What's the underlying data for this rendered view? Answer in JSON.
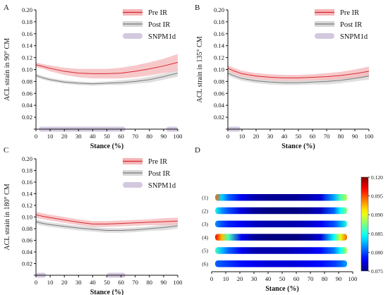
{
  "panels": [
    {
      "id": "A",
      "ylabel": "ACL strain in 90° CM",
      "xlabel": "Stance (%)",
      "show_legend": true
    },
    {
      "id": "B",
      "ylabel": "ACL strain in 135° CM",
      "xlabel": "Stance (%)",
      "show_legend": true
    },
    {
      "id": "C",
      "ylabel": "ACL strain in 180° CM",
      "xlabel": "Stance (%)",
      "show_legend": true
    },
    {
      "id": "D",
      "xlabel": "Stance (%)"
    }
  ],
  "legend": {
    "pre": "Pre IR",
    "post": "Post IR",
    "spm": "SNPM1d"
  },
  "colors": {
    "pre": "#d9282f",
    "pre_band": "#f4b6b8",
    "post": "#7a7a7a",
    "post_band": "#d7d7d7",
    "spm": "#d3c8e0"
  },
  "chart_data": [
    {
      "type": "line",
      "panel": "A",
      "xlim": [
        0,
        100
      ],
      "ylim": [
        0,
        0.2
      ],
      "x": [
        0,
        5,
        10,
        20,
        30,
        40,
        50,
        60,
        70,
        80,
        90,
        100
      ],
      "series": [
        {
          "name": "Pre IR",
          "values": [
            0.108,
            0.105,
            0.102,
            0.097,
            0.094,
            0.093,
            0.093,
            0.094,
            0.097,
            0.101,
            0.106,
            0.112
          ],
          "sd": [
            0.004,
            0.004,
            0.005,
            0.006,
            0.007,
            0.008,
            0.008,
            0.009,
            0.01,
            0.011,
            0.012,
            0.014
          ]
        },
        {
          "name": "Post IR",
          "values": [
            0.09,
            0.086,
            0.083,
            0.079,
            0.077,
            0.076,
            0.077,
            0.078,
            0.08,
            0.083,
            0.088,
            0.094
          ],
          "sd": [
            0.003,
            0.003,
            0.003,
            0.003,
            0.003,
            0.003,
            0.003,
            0.004,
            0.004,
            0.005,
            0.005,
            0.006
          ]
        }
      ],
      "snpm_regions": [
        [
          2,
          63
        ],
        [
          92,
          100
        ]
      ]
    },
    {
      "type": "line",
      "panel": "B",
      "xlim": [
        0,
        100
      ],
      "ylim": [
        0,
        0.2
      ],
      "x": [
        0,
        5,
        10,
        20,
        30,
        40,
        50,
        60,
        70,
        80,
        90,
        100
      ],
      "series": [
        {
          "name": "Pre IR",
          "values": [
            0.102,
            0.097,
            0.093,
            0.089,
            0.087,
            0.086,
            0.086,
            0.087,
            0.088,
            0.09,
            0.093,
            0.097
          ],
          "sd": [
            0.005,
            0.005,
            0.005,
            0.005,
            0.005,
            0.005,
            0.005,
            0.005,
            0.006,
            0.006,
            0.007,
            0.008
          ]
        },
        {
          "name": "Post IR",
          "values": [
            0.094,
            0.089,
            0.085,
            0.081,
            0.079,
            0.078,
            0.078,
            0.079,
            0.08,
            0.082,
            0.085,
            0.089
          ],
          "sd": [
            0.004,
            0.004,
            0.004,
            0.004,
            0.004,
            0.004,
            0.004,
            0.004,
            0.005,
            0.005,
            0.005,
            0.006
          ]
        }
      ],
      "snpm_regions": [
        [
          0,
          9
        ]
      ]
    },
    {
      "type": "line",
      "panel": "C",
      "xlim": [
        0,
        100
      ],
      "ylim": [
        0,
        0.2
      ],
      "x": [
        0,
        5,
        10,
        20,
        30,
        40,
        50,
        60,
        70,
        80,
        90,
        100
      ],
      "series": [
        {
          "name": "Pre IR",
          "values": [
            0.104,
            0.101,
            0.099,
            0.095,
            0.091,
            0.088,
            0.088,
            0.089,
            0.09,
            0.091,
            0.092,
            0.093
          ],
          "sd": [
            0.005,
            0.005,
            0.005,
            0.005,
            0.005,
            0.005,
            0.005,
            0.005,
            0.005,
            0.005,
            0.006,
            0.006
          ]
        },
        {
          "name": "Post IR",
          "values": [
            0.092,
            0.089,
            0.087,
            0.084,
            0.081,
            0.079,
            0.077,
            0.077,
            0.078,
            0.08,
            0.082,
            0.085
          ],
          "sd": [
            0.004,
            0.004,
            0.004,
            0.004,
            0.004,
            0.004,
            0.004,
            0.004,
            0.004,
            0.004,
            0.005,
            0.005
          ]
        }
      ],
      "snpm_regions": [
        [
          0,
          7
        ],
        [
          50,
          63
        ]
      ]
    },
    {
      "type": "heatmap",
      "panel": "D",
      "xlim": [
        0,
        100
      ],
      "rows": [
        "(1)",
        "(2)",
        "(3)",
        "(4)",
        "(5)",
        "(6)"
      ],
      "x": [
        0,
        5,
        10,
        20,
        30,
        40,
        50,
        60,
        70,
        80,
        90,
        95,
        100
      ],
      "values": [
        [
          0.11,
          0.09,
          0.085,
          0.08,
          0.077,
          0.076,
          0.076,
          0.076,
          0.077,
          0.079,
          0.088,
          0.095,
          0.1
        ],
        [
          0.093,
          0.087,
          0.084,
          0.079,
          0.076,
          0.075,
          0.075,
          0.075,
          0.076,
          0.078,
          0.085,
          0.092,
          0.098
        ],
        [
          0.087,
          0.084,
          0.082,
          0.08,
          0.078,
          0.077,
          0.077,
          0.077,
          0.078,
          0.08,
          0.084,
          0.088,
          0.094
        ],
        [
          0.115,
          0.106,
          0.095,
          0.08,
          0.076,
          0.075,
          0.075,
          0.075,
          0.076,
          0.079,
          0.092,
          0.102,
          0.11
        ],
        [
          0.095,
          0.089,
          0.085,
          0.08,
          0.077,
          0.077,
          0.077,
          0.078,
          0.079,
          0.081,
          0.086,
          0.092,
          0.1
        ],
        [
          0.085,
          0.084,
          0.083,
          0.081,
          0.08,
          0.079,
          0.079,
          0.079,
          0.08,
          0.081,
          0.083,
          0.085,
          0.088
        ]
      ],
      "colorbar_ticks": [
        "0.120",
        "0.095",
        "0.090",
        "0.085",
        "0.080",
        "0.075"
      ],
      "colorbar_range": [
        0.075,
        0.12
      ]
    }
  ],
  "axis_ticks": {
    "y": [
      "0",
      "0.02",
      "0.04",
      "0.06",
      "0.08",
      "0.10",
      "0.12",
      "0.14",
      "0.16",
      "0.18",
      "0.20"
    ],
    "x": [
      "0",
      "10",
      "20",
      "30",
      "40",
      "50",
      "60",
      "70",
      "80",
      "90",
      "100"
    ]
  }
}
